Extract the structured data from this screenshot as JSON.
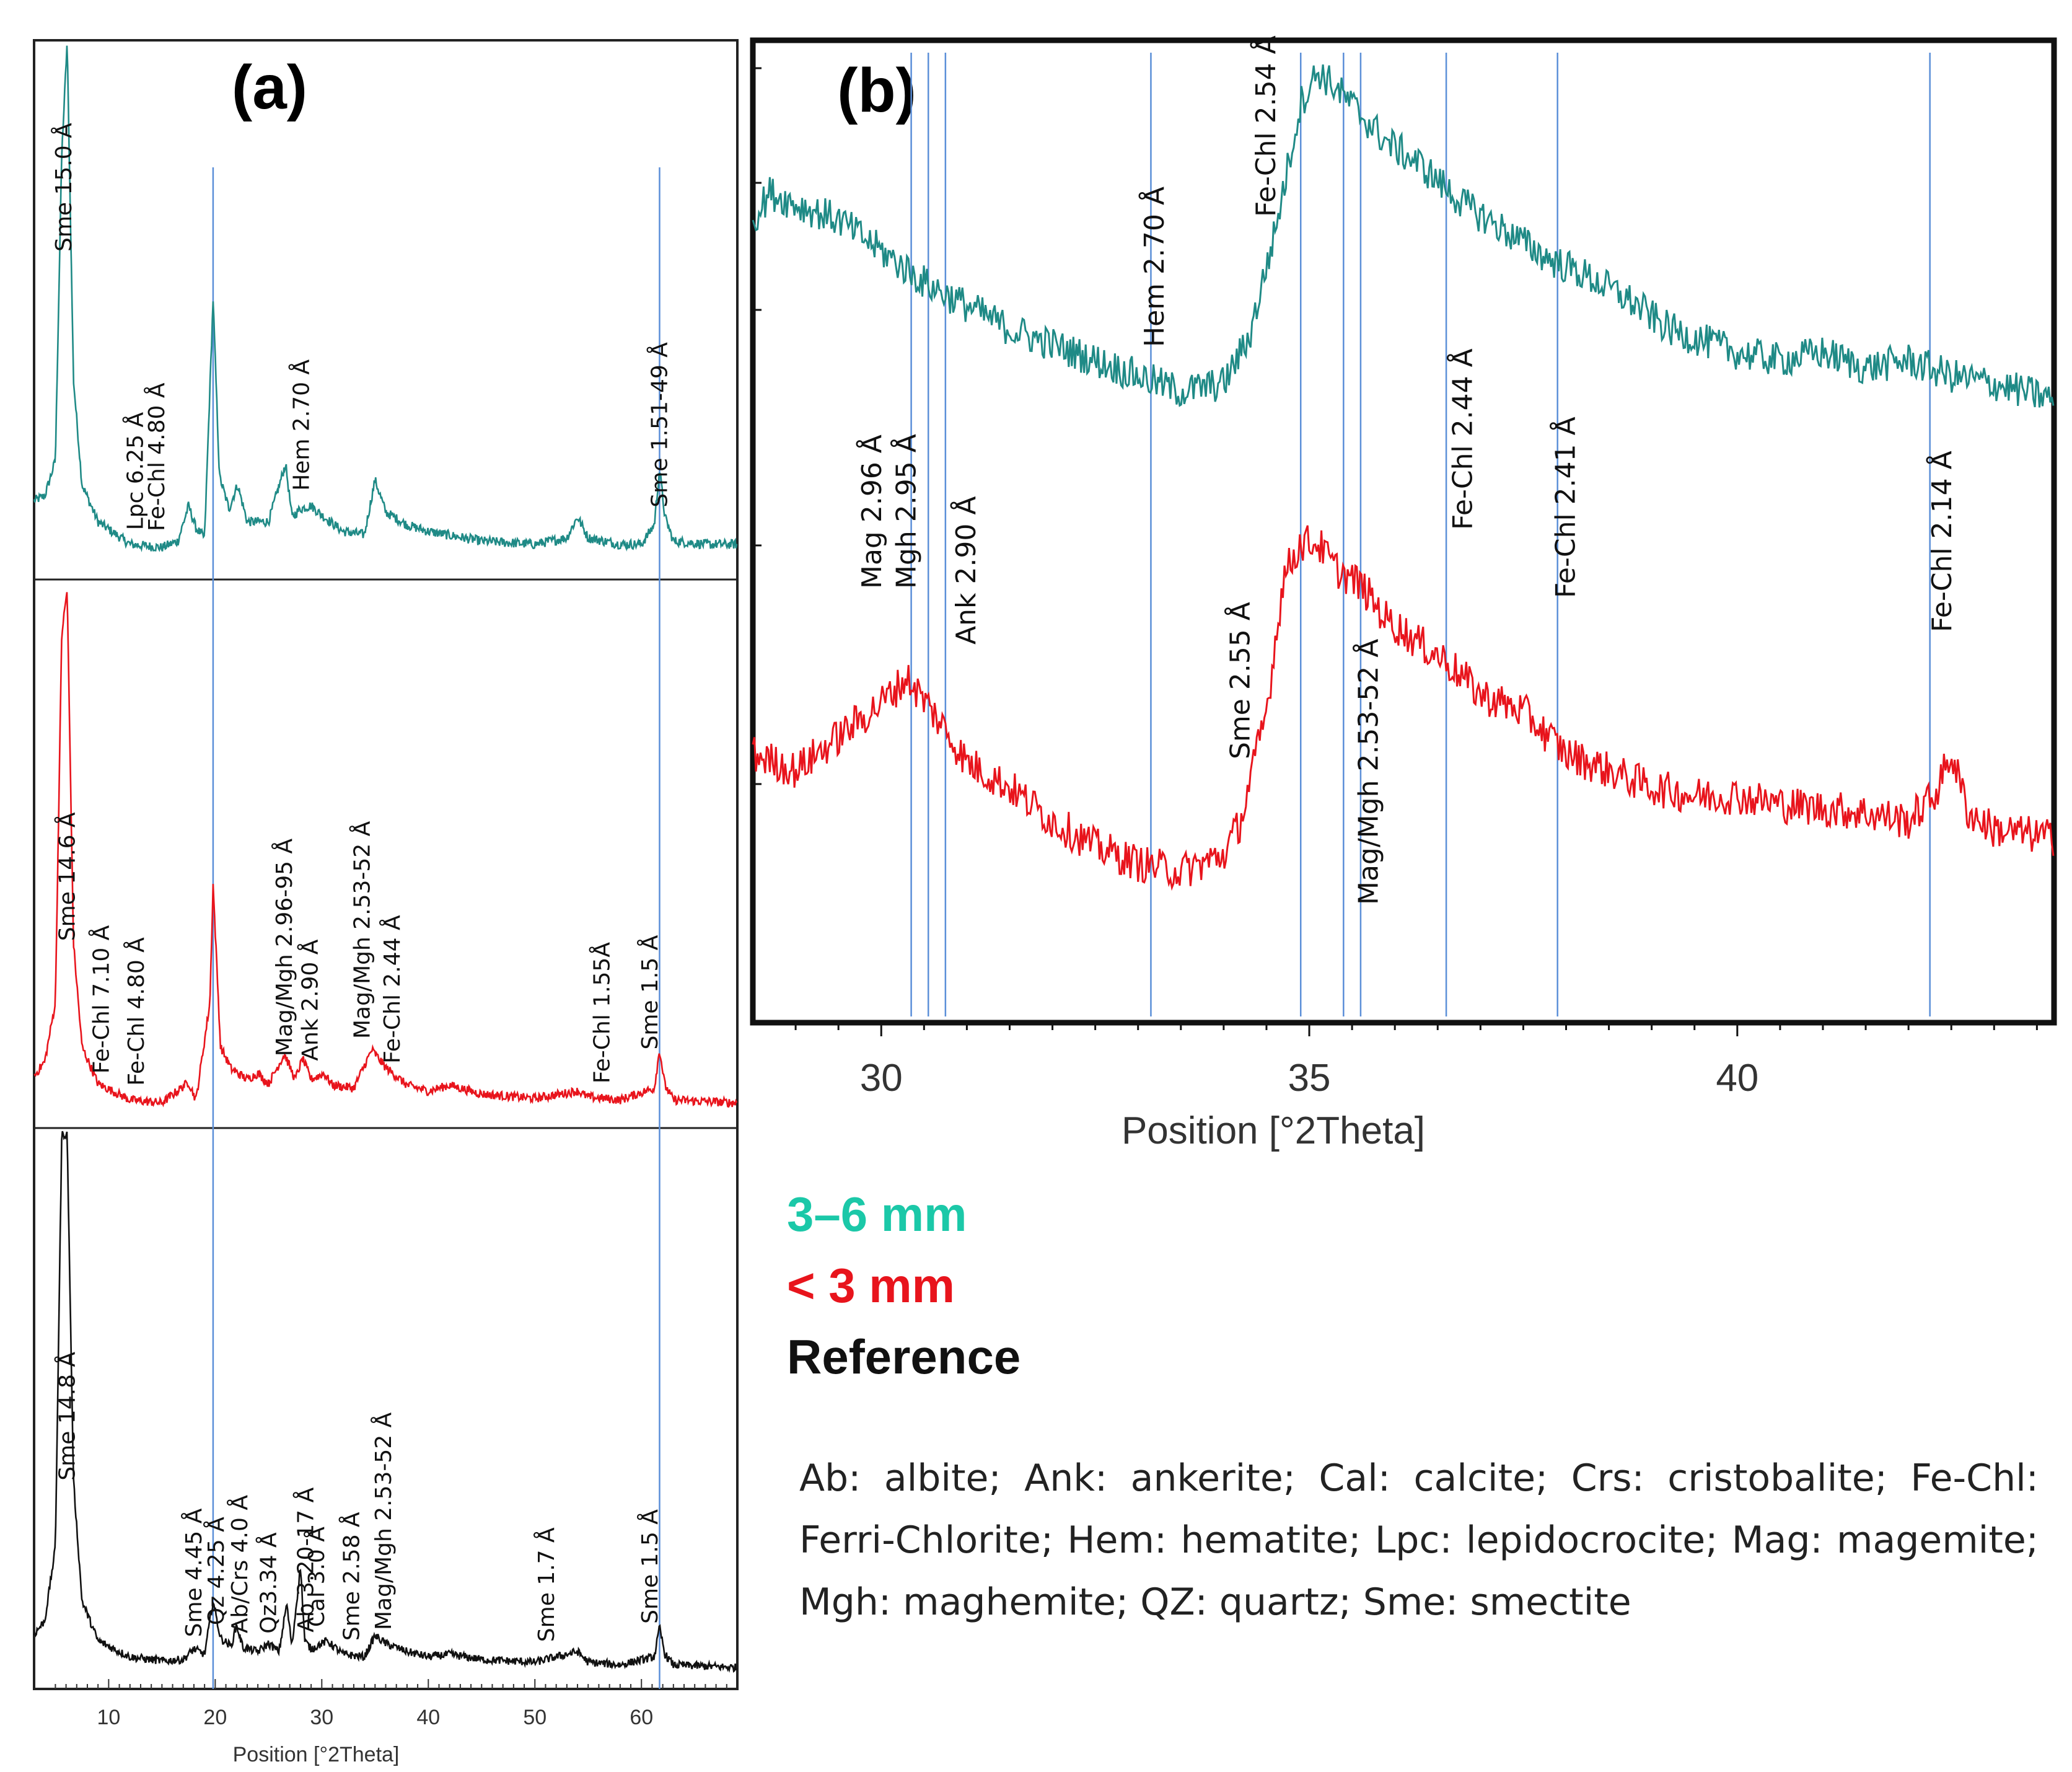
{
  "legend": {
    "green": {
      "label": "3–6 mm",
      "color": "#1bc8a8"
    },
    "red": {
      "label": "< 3 mm",
      "color": "#e8141c"
    },
    "black": {
      "label": "Reference",
      "color": "#111111"
    }
  },
  "caption": "Ab: albite; Ank: ankerite; Cal: calcite; Crs: cristobalite; Fe-Chl: Ferri-Chlorite; Hem: hematite; Lpc: lepidocrocite; Mag: magemite; Mgh: maghemite; QZ: quartz; Sme: smectite",
  "colors": {
    "teal": "#1f8a86",
    "red": "#e8141c",
    "black": "#111111",
    "ref_line": "#5b8fd8"
  },
  "chart_data": [
    {
      "type": "line",
      "panel_label": "(a)",
      "xlabel": "Position [°2Theta]",
      "ylabel": "",
      "xlim": [
        3,
        69
      ],
      "x_ticks": [
        "10",
        "20",
        "30",
        "40",
        "50",
        "60"
      ],
      "reference_lines": [
        19.8,
        61.7
      ],
      "series": [
        {
          "name": "3–6 mm",
          "color": "#1f8a86",
          "points": [
            [
              3,
              45
            ],
            [
              4,
              48
            ],
            [
              5,
              70
            ],
            [
              5.6,
              260
            ],
            [
              6.1,
              330
            ],
            [
              6.7,
              120
            ],
            [
              7.5,
              55
            ],
            [
              9,
              32
            ],
            [
              12,
              18
            ],
            [
              15,
              16
            ],
            [
              16.5,
              20
            ],
            [
              17.5,
              42
            ],
            [
              18.2,
              28
            ],
            [
              19,
              22
            ],
            [
              19.8,
              170
            ],
            [
              20.4,
              60
            ],
            [
              21.3,
              40
            ],
            [
              22.1,
              55
            ],
            [
              23,
              32
            ],
            [
              25,
              32
            ],
            [
              26.6,
              68
            ],
            [
              27.2,
              35
            ],
            [
              28,
              40
            ],
            [
              29,
              42
            ],
            [
              30,
              36
            ],
            [
              32,
              26
            ],
            [
              34,
              24
            ],
            [
              35,
              58
            ],
            [
              36,
              38
            ],
            [
              38,
              30
            ],
            [
              40,
              26
            ],
            [
              45,
              20
            ],
            [
              50,
              18
            ],
            [
              53,
              22
            ],
            [
              54,
              35
            ],
            [
              55,
              22
            ],
            [
              58,
              18
            ],
            [
              60,
              18
            ],
            [
              61.2,
              30
            ],
            [
              61.7,
              65
            ],
            [
              62.2,
              35
            ],
            [
              63,
              20
            ],
            [
              66,
              18
            ],
            [
              69,
              18
            ]
          ],
          "annotations": [
            {
              "x": 6.5,
              "text": "Sme 15.0 Å"
            },
            {
              "x": 13.2,
              "text": "Lpc 6.25 Å"
            },
            {
              "x": 15.2,
              "text": "Fe-Chl 4.80 Å"
            },
            {
              "x": 28.8,
              "text": "Hem 2.70 Å"
            },
            {
              "x": 62.4,
              "text": "Sme 1.51-49 Å"
            }
          ]
        },
        {
          "name": "< 3 mm",
          "color": "#e8141c",
          "points": [
            [
              3,
              30
            ],
            [
              4,
              40
            ],
            [
              5,
              80
            ],
            [
              5.6,
              330
            ],
            [
              6.1,
              360
            ],
            [
              6.7,
              120
            ],
            [
              7.5,
              50
            ],
            [
              9,
              25
            ],
            [
              12,
              14
            ],
            [
              15,
              12
            ],
            [
              17.5,
              26
            ],
            [
              18.2,
              14
            ],
            [
              19.5,
              80
            ],
            [
              19.8,
              160
            ],
            [
              20.5,
              50
            ],
            [
              21.5,
              35
            ],
            [
              23,
              28
            ],
            [
              24,
              32
            ],
            [
              25,
              25
            ],
            [
              26.5,
              45
            ],
            [
              27.5,
              28
            ],
            [
              28.2,
              42
            ],
            [
              29,
              28
            ],
            [
              30.2,
              32
            ],
            [
              31,
              24
            ],
            [
              33,
              22
            ],
            [
              34.7,
              48
            ],
            [
              36,
              36
            ],
            [
              38,
              24
            ],
            [
              40,
              20
            ],
            [
              42,
              24
            ],
            [
              45,
              18
            ],
            [
              50,
              15
            ],
            [
              54,
              20
            ],
            [
              55,
              16
            ],
            [
              58,
              14
            ],
            [
              61.2,
              22
            ],
            [
              61.7,
              48
            ],
            [
              62.2,
              24
            ],
            [
              63,
              14
            ],
            [
              66,
              13
            ],
            [
              69,
              12
            ]
          ],
          "annotations": [
            {
              "x": 6.8,
              "text": "Sme 14.6 Å"
            },
            {
              "x": 10.0,
              "text": "Fe-Chl 7.10 Å"
            },
            {
              "x": 13.3,
              "text": "Fe-Chl 4.80 Å"
            },
            {
              "x": 27.2,
              "text": "Mag/Mgh 2.96-95 Å"
            },
            {
              "x": 29.6,
              "text": "Ank 2.90 Å"
            },
            {
              "x": 34.5,
              "text": "Mag/Mgh 2.53-52 Å"
            },
            {
              "x": 37.3,
              "text": "Fe-Chl 2.44 Å"
            },
            {
              "x": 57.0,
              "text": "Fe-Chl 1.55Å"
            },
            {
              "x": 61.5,
              "text": "Sme 1.5 Å"
            }
          ]
        },
        {
          "name": "Reference",
          "color": "#111111",
          "points": [
            [
              3,
              35
            ],
            [
              4,
              45
            ],
            [
              5,
              100
            ],
            [
              5.6,
              410
            ],
            [
              6.1,
              410
            ],
            [
              6.7,
              150
            ],
            [
              7.5,
              60
            ],
            [
              9,
              30
            ],
            [
              12,
              18
            ],
            [
              15,
              15
            ],
            [
              17,
              16
            ],
            [
              18,
              24
            ],
            [
              19,
              20
            ],
            [
              19.8,
              60
            ],
            [
              20.5,
              32
            ],
            [
              21.5,
              26
            ],
            [
              22,
              42
            ],
            [
              22.6,
              25
            ],
            [
              24,
              22
            ],
            [
              25,
              28
            ],
            [
              26,
              22
            ],
            [
              26.7,
              58
            ],
            [
              27.2,
              26
            ],
            [
              28,
              86
            ],
            [
              28.4,
              30
            ],
            [
              29,
              24
            ],
            [
              30.5,
              30
            ],
            [
              32,
              20
            ],
            [
              34,
              18
            ],
            [
              35,
              34
            ],
            [
              36,
              28
            ],
            [
              38,
              22
            ],
            [
              40,
              18
            ],
            [
              42,
              20
            ],
            [
              45,
              16
            ],
            [
              50,
              14
            ],
            [
              54,
              22
            ],
            [
              55,
              14
            ],
            [
              58,
              12
            ],
            [
              61.2,
              18
            ],
            [
              61.7,
              40
            ],
            [
              62.2,
              20
            ],
            [
              63,
              12
            ],
            [
              66,
              11
            ],
            [
              69,
              10
            ]
          ],
          "annotations": [
            {
              "x": 6.8,
              "text": "Sme 14.8 Å"
            },
            {
              "x": 18.7,
              "text": "Sme 4.45 Å"
            },
            {
              "x": 20.8,
              "text": "Qz 4.25 Å"
            },
            {
              "x": 23.0,
              "text": "Ab/Crs 4.0 Å"
            },
            {
              "x": 25.7,
              "text": "Qz3.34 Å"
            },
            {
              "x": 29.2,
              "text": "Ab 3.20-17 Å"
            },
            {
              "x": 30.2,
              "text": "Cal 3.0 Å"
            },
            {
              "x": 33.5,
              "text": "Sme 2.58 Å"
            },
            {
              "x": 36.5,
              "text": "Mag/Mgh 2.53-52 Å"
            },
            {
              "x": 51.8,
              "text": "Sme 1.7 Å"
            },
            {
              "x": 61.5,
              "text": "Sme 1.5 Å"
            }
          ]
        }
      ]
    },
    {
      "type": "line",
      "panel_label": "(b)",
      "xlabel": "Position [°2Theta]",
      "ylabel": "",
      "xlim": [
        28.5,
        43.7
      ],
      "x_ticks": [
        "30",
        "35",
        "40"
      ],
      "reference_lines": [
        30.35,
        30.55,
        30.75,
        33.15,
        34.9,
        35.4,
        35.6,
        36.6,
        37.9,
        42.25
      ],
      "series": [
        {
          "name": "3–6 mm",
          "color": "#1f8a86",
          "points": [
            [
              28.5,
              58
            ],
            [
              28.7,
              65
            ],
            [
              29,
              62
            ],
            [
              29.5,
              58
            ],
            [
              30,
              50
            ],
            [
              30.5,
              42
            ],
            [
              31,
              36
            ],
            [
              31.5,
              30
            ],
            [
              32,
              26
            ],
            [
              32.5,
              22
            ],
            [
              33,
              18
            ],
            [
              33.5,
              14
            ],
            [
              34,
              16
            ],
            [
              34.3,
              28
            ],
            [
              34.6,
              55
            ],
            [
              34.9,
              88
            ],
            [
              35.1,
              96
            ],
            [
              35.3,
              92
            ],
            [
              35.6,
              85
            ],
            [
              35.9,
              78
            ],
            [
              36.3,
              72
            ],
            [
              36.8,
              62
            ],
            [
              37.3,
              55
            ],
            [
              37.8,
              48
            ],
            [
              38.2,
              44
            ],
            [
              38.7,
              38
            ],
            [
              39.2,
              30
            ],
            [
              40,
              24
            ],
            [
              40.5,
              22
            ],
            [
              41,
              24
            ],
            [
              41.5,
              20
            ],
            [
              42,
              22
            ],
            [
              42.5,
              18
            ],
            [
              43,
              16
            ],
            [
              43.7,
              12
            ]
          ],
          "annotations": [
            {
              "x": 34.6,
              "text": "Fe-Chl 2.54 Å"
            },
            {
              "x": 33.3,
              "text": "Hem 2.70 Å"
            },
            {
              "x": 36.9,
              "text": "Fe-Chl 2.44 Å"
            }
          ]
        },
        {
          "name": "< 3 mm",
          "color": "#e8141c",
          "points": [
            [
              28.5,
              30
            ],
            [
              29,
              26
            ],
            [
              29.5,
              34
            ],
            [
              30,
              42
            ],
            [
              30.3,
              48
            ],
            [
              30.6,
              40
            ],
            [
              31,
              28
            ],
            [
              31.5,
              22
            ],
            [
              32,
              14
            ],
            [
              32.5,
              8
            ],
            [
              33,
              4
            ],
            [
              33.5,
              2
            ],
            [
              34,
              6
            ],
            [
              34.2,
              14
            ],
            [
              34.5,
              40
            ],
            [
              34.7,
              72
            ],
            [
              34.9,
              80
            ],
            [
              35.1,
              80
            ],
            [
              35.3,
              74
            ],
            [
              35.6,
              70
            ],
            [
              35.9,
              62
            ],
            [
              36.3,
              56
            ],
            [
              36.6,
              52
            ],
            [
              37,
              44
            ],
            [
              37.5,
              40
            ],
            [
              38,
              30
            ],
            [
              38.5,
              26
            ],
            [
              39,
              22
            ],
            [
              39.5,
              20
            ],
            [
              40,
              20
            ],
            [
              40.5,
              18
            ],
            [
              41,
              17
            ],
            [
              41.5,
              16
            ],
            [
              42,
              14
            ],
            [
              42.3,
              20
            ],
            [
              42.5,
              30
            ],
            [
              42.7,
              16
            ],
            [
              43,
              12
            ],
            [
              43.7,
              10
            ]
          ],
          "annotations": [
            {
              "x": 30.0,
              "text": "Mag 2.96 Å"
            },
            {
              "x": 30.4,
              "text": "Mgh 2.95 Å"
            },
            {
              "x": 31.1,
              "text": "Ank 2.90 Å"
            },
            {
              "x": 34.3,
              "text": "Sme  2.55 Å"
            },
            {
              "x": 35.8,
              "text": "Mag/Mgh 2.53-52 Å"
            },
            {
              "x": 38.1,
              "text": "Fe-Chl 2.41 Å"
            },
            {
              "x": 42.5,
              "text": "Fe-Chl 2.14 Å"
            }
          ]
        }
      ]
    }
  ]
}
